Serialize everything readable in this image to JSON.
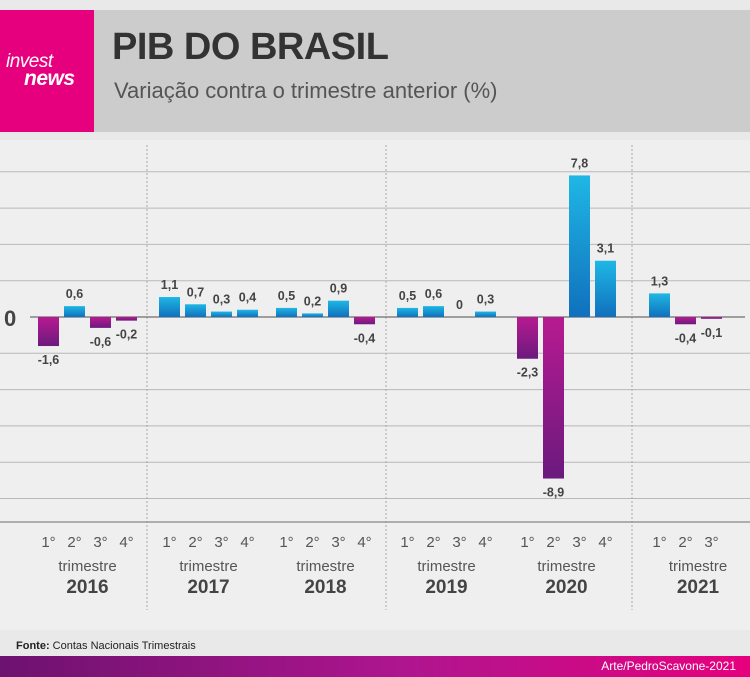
{
  "brand": {
    "logo_line1": "invest",
    "logo_line2": "news",
    "primary_color": "#e6007e"
  },
  "header": {
    "title": "PIB DO BRASIL",
    "subtitle": "Variação contra o trimestre anterior (%)"
  },
  "footer": {
    "source_label": "Fonte:",
    "source_text": "Contas Nacionais Trimestrais",
    "credit": "Arte/PedroScavone-2021"
  },
  "chart_data": {
    "type": "bar",
    "title": "PIB DO BRASIL",
    "subtitle": "Variação contra o trimestre anterior (%)",
    "zero_label": "0",
    "quarter_word": "trimestre",
    "grid": true,
    "colors": {
      "positive": [
        "#1fb7e5",
        "#1070bd"
      ],
      "negative": [
        "#b71a91",
        "#6b1a7e"
      ]
    },
    "groups": [
      {
        "year": "2016",
        "quarters": [
          "1°",
          "2°",
          "3°",
          "4°"
        ],
        "values": [
          -1.6,
          0.6,
          -0.6,
          -0.2
        ],
        "labels": [
          "-1,6",
          "0,6",
          "-0,6",
          "-0,2"
        ]
      },
      {
        "year": "2017",
        "quarters": [
          "1°",
          "2°",
          "3°",
          "4°"
        ],
        "values": [
          1.1,
          0.7,
          0.3,
          0.4
        ],
        "labels": [
          "1,1",
          "0,7",
          "0,3",
          "0,4"
        ]
      },
      {
        "year": "2018",
        "quarters": [
          "1°",
          "2°",
          "3°",
          "4°"
        ],
        "values": [
          0.5,
          0.2,
          0.9,
          -0.4
        ],
        "labels": [
          "0,5",
          "0,2",
          "0,9",
          "-0,4"
        ]
      },
      {
        "year": "2019",
        "quarters": [
          "1°",
          "2°",
          "3°",
          "4°"
        ],
        "values": [
          0.5,
          0.6,
          0,
          0.3
        ],
        "labels": [
          "0,5",
          "0,6",
          "0",
          "0,3"
        ]
      },
      {
        "year": "2020",
        "quarters": [
          "1°",
          "2°",
          "3°",
          "4°"
        ],
        "values": [
          -2.3,
          -8.9,
          7.8,
          3.1
        ],
        "labels": [
          "-2,3",
          "-8,9",
          "7,8",
          "3,1"
        ]
      },
      {
        "year": "2021",
        "quarters": [
          "1°",
          "2°",
          "3°"
        ],
        "values": [
          1.3,
          -0.4,
          -0.1
        ],
        "labels": [
          "1,3",
          "-0,4",
          "-0,1"
        ]
      }
    ]
  }
}
